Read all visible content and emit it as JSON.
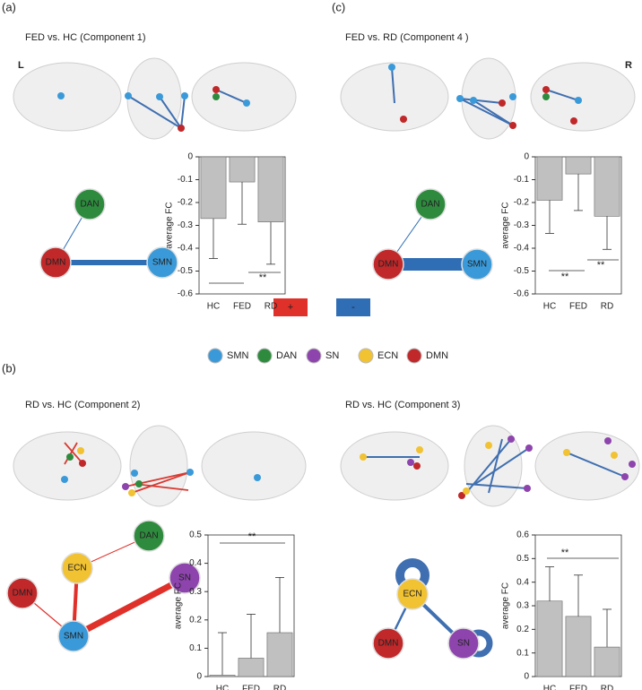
{
  "panels": {
    "a": "(a)",
    "c": "(c)",
    "b": "(b)"
  },
  "titles": [
    "FED vs. HC (Component 1)",
    "FED vs. RD (Component 4 )",
    "RD vs. HC (Component 2)",
    "RD vs. HC (Component 3)"
  ],
  "hemispheres": {
    "left": "L",
    "right": "R"
  },
  "legend": {
    "signs": [
      {
        "label": "+",
        "color": "#e0302a"
      },
      {
        "label": "-",
        "color": "#2f6db5"
      }
    ],
    "networks": [
      {
        "label": "SMN",
        "color": "#3a9ad9"
      },
      {
        "label": "DAN",
        "color": "#2e8b3e"
      },
      {
        "label": "SN",
        "color": "#8e44ad"
      },
      {
        "label": "ECN",
        "color": "#f1c232"
      },
      {
        "label": "DMN",
        "color": "#c0282a"
      }
    ]
  },
  "networks": [
    {
      "nodes": [
        "DAN",
        "DMN",
        "SMN"
      ]
    },
    {
      "nodes": [
        "DAN",
        "DMN",
        "SMN"
      ]
    },
    {
      "nodes": [
        "ECN",
        "DAN",
        "SN",
        "DMN",
        "SMN"
      ]
    },
    {
      "nodes": [
        "ECN",
        "DMN",
        "SN"
      ]
    }
  ],
  "chart_data": [
    {
      "type": "bar",
      "categories": [
        "HC",
        "FED",
        "RD"
      ],
      "values": [
        -0.27,
        -0.11,
        -0.285
      ],
      "errors": [
        0.175,
        0.185,
        0.185
      ],
      "color": "#c0c0c0",
      "ylim": [
        -0.6,
        0
      ],
      "yticks": [
        0,
        -0.1,
        -0.2,
        -0.3,
        -0.4,
        -0.5,
        -0.6
      ],
      "y_label": "average FC",
      "annotations": [
        "**"
      ]
    },
    {
      "type": "bar",
      "categories": [
        "HC",
        "FED",
        "RD"
      ],
      "values": [
        -0.19,
        -0.075,
        -0.26
      ],
      "errors": [
        0.145,
        0.16,
        0.145
      ],
      "color": "#c0c0c0",
      "ylim": [
        -0.6,
        0
      ],
      "yticks": [
        0,
        -0.1,
        -0.2,
        -0.3,
        -0.4,
        -0.5,
        -0.6
      ],
      "y_label": "average FC",
      "annotations": [
        "**",
        "**"
      ]
    },
    {
      "type": "bar",
      "categories": [
        "HC",
        "FED",
        "RD"
      ],
      "values": [
        0.005,
        0.065,
        0.155
      ],
      "errors": [
        0.15,
        0.155,
        0.195
      ],
      "color": "#c0c0c0",
      "ylim": [
        0,
        0.5
      ],
      "yticks": [
        0,
        0.1,
        0.2,
        0.3,
        0.4,
        0.5
      ],
      "y_label": "average FC",
      "annotations": [
        "**"
      ]
    },
    {
      "type": "bar",
      "categories": [
        "HC",
        "FED",
        "RD"
      ],
      "values": [
        0.32,
        0.255,
        0.125
      ],
      "errors": [
        0.145,
        0.175,
        0.16
      ],
      "color": "#c0c0c0",
      "ylim": [
        0,
        0.6
      ],
      "yticks": [
        0,
        0.1,
        0.2,
        0.3,
        0.4,
        0.5,
        0.6
      ],
      "y_label": "average FC",
      "annotations": [
        "**"
      ]
    }
  ]
}
